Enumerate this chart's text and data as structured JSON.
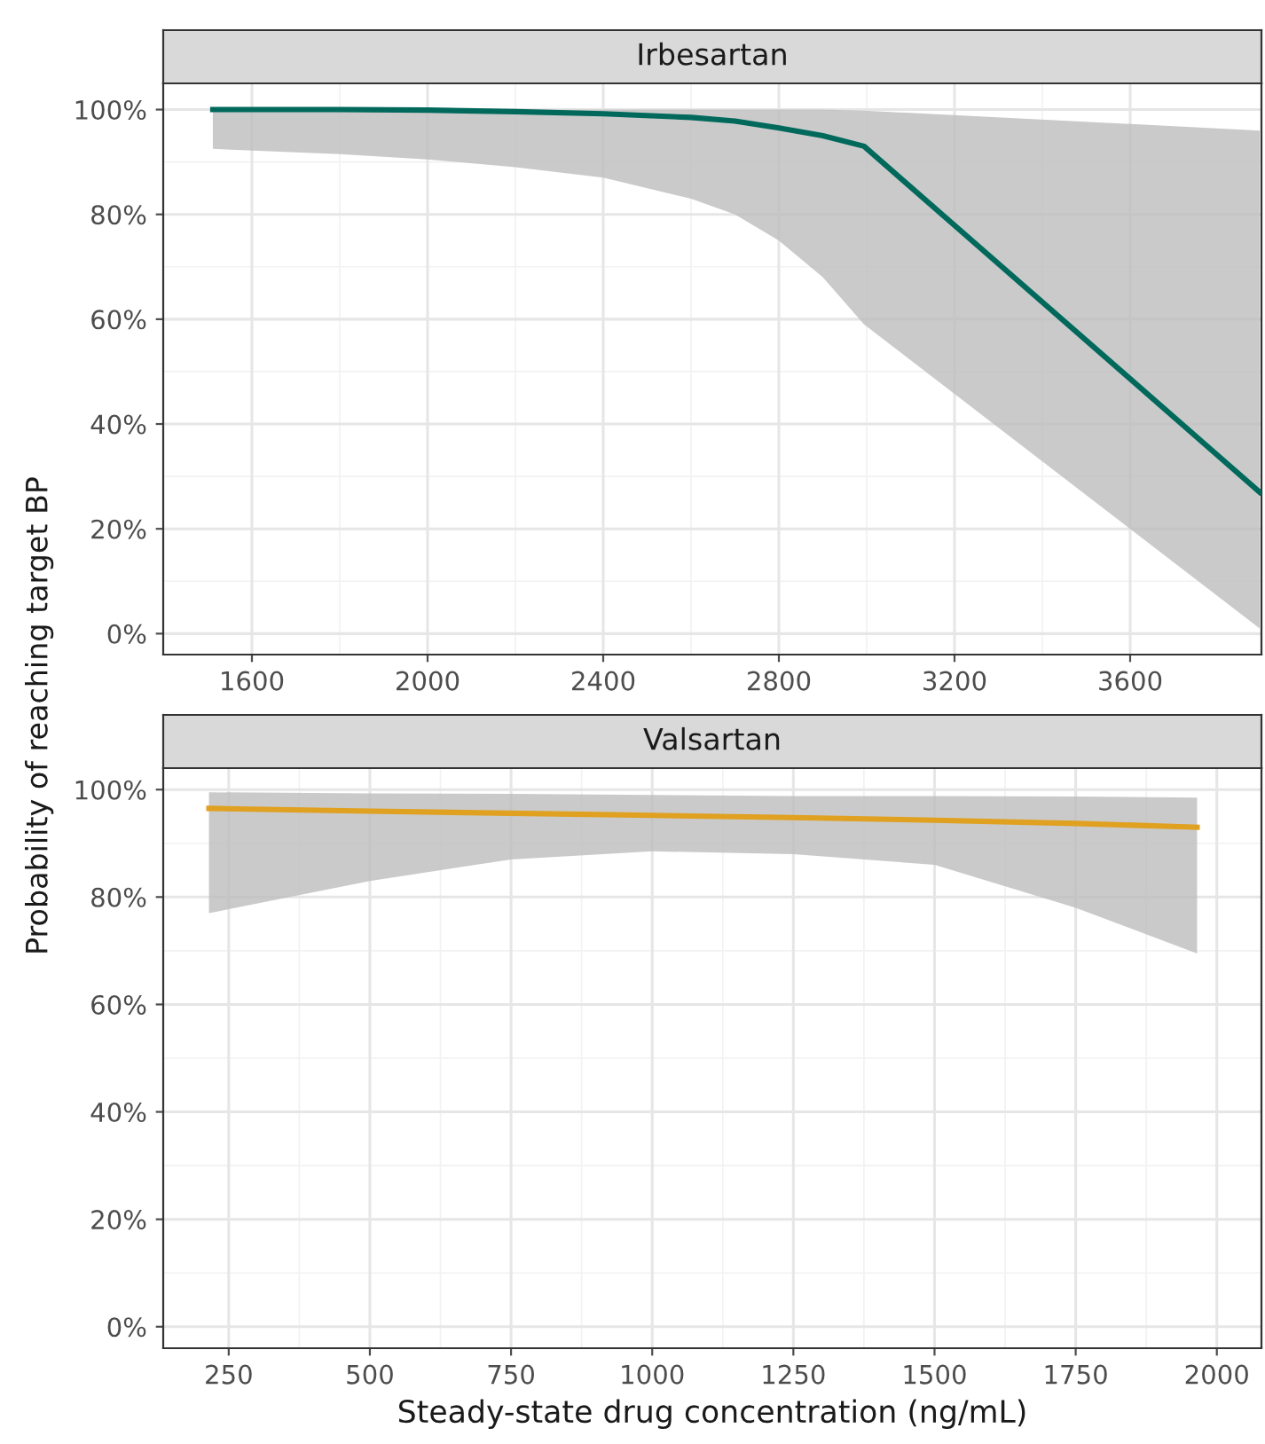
{
  "chart_data": [
    {
      "type": "line",
      "title": "Irbesartan",
      "ylabel": "Probability of reaching target BP",
      "xlim": [
        1398,
        3899
      ],
      "xticks": [
        1600,
        2000,
        2400,
        2800,
        3200,
        3600
      ],
      "ylim": [
        -4,
        105
      ],
      "yticks": [
        {
          "value": 0,
          "label": "0%"
        },
        {
          "value": 20,
          "label": "20%"
        },
        {
          "value": 40,
          "label": "40%"
        },
        {
          "value": 60,
          "label": "60%"
        },
        {
          "value": 80,
          "label": "80%"
        },
        {
          "value": 100,
          "label": "100%"
        }
      ],
      "grid": true,
      "series": [
        {
          "color": "#00695c",
          "x": [
            1511,
            1800,
            2000,
            2200,
            2400,
            2600,
            2700,
            2800,
            2900,
            2994,
            3895
          ],
          "values": [
            100,
            100,
            99.9,
            99.6,
            99.2,
            98.5,
            97.8,
            96.5,
            95,
            93,
            27
          ],
          "lower": [
            92.5,
            91.5,
            90.5,
            89,
            87,
            83,
            80,
            75,
            68,
            59,
            1
          ],
          "upper": [
            100,
            100,
            100,
            100,
            100,
            100,
            100,
            100,
            100,
            99.8,
            96
          ]
        }
      ]
    },
    {
      "type": "line",
      "title": "Valsartan",
      "xlabel": "Steady-state drug concentration (ng/mL)",
      "xlim": [
        134,
        2079
      ],
      "xticks": [
        250,
        500,
        750,
        1000,
        1250,
        1500,
        1750,
        2000
      ],
      "ylim": [
        -4,
        104
      ],
      "yticks": [
        {
          "value": 0,
          "label": "0%"
        },
        {
          "value": 20,
          "label": "20%"
        },
        {
          "value": 40,
          "label": "40%"
        },
        {
          "value": 60,
          "label": "60%"
        },
        {
          "value": 80,
          "label": "80%"
        },
        {
          "value": 100,
          "label": "100%"
        }
      ],
      "grid": true,
      "series": [
        {
          "color": "#e0a020",
          "x": [
            215,
            500,
            750,
            1000,
            1250,
            1500,
            1750,
            1965
          ],
          "values": [
            96.5,
            96,
            95.6,
            95.2,
            94.8,
            94.3,
            93.7,
            93
          ],
          "lower": [
            77,
            83,
            87,
            88.5,
            88,
            86,
            78,
            69.5
          ],
          "upper": [
            99.5,
            99.3,
            99.2,
            99,
            98.8,
            98.8,
            98.7,
            98.5
          ]
        }
      ]
    }
  ]
}
